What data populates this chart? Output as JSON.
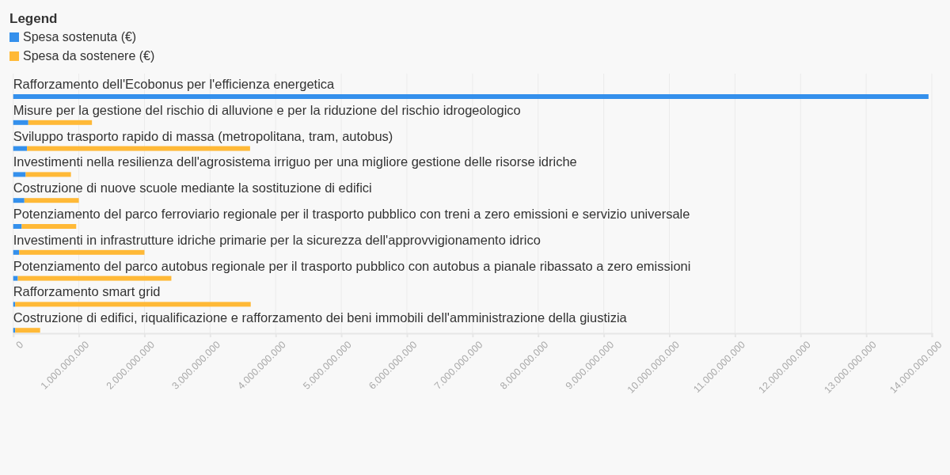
{
  "chart_data": {
    "type": "bar",
    "orientation": "horizontal",
    "stacked": true,
    "legend_title": "Legend",
    "legend": "top left",
    "grid": "x",
    "categories": [
      "Rafforzamento dell'Ecobonus per l'efficienza energetica",
      "Misure per la gestione del rischio di alluvione e per la riduzione del rischio idrogeologico",
      "Sviluppo trasporto rapido di massa (metropolitana, tram, autobus)",
      "Investimenti nella resilienza dell'agrosistema irriguo per una migliore gestione delle risorse idriche",
      "Costruzione di nuove scuole mediante la sostituzione di edifici",
      "Potenziamento del parco ferroviario regionale per il trasporto pubblico con treni a zero emissioni e servizio universale",
      "Investimenti in infrastrutture idriche primarie per la sicurezza dell'approvvigionamento idrico",
      "Potenziamento del parco autobus regionale per il trasporto pubblico con autobus a pianale ribassato a zero emissioni",
      "Rafforzamento smart grid",
      "Costruzione di edifici, riqualificazione e rafforzamento dei beni immobili dell'amministrazione della giustizia"
    ],
    "series": [
      {
        "name": "Spesa sostenuta (€)",
        "color": "#3490ec",
        "values": [
          13950000000,
          230000000,
          210000000,
          190000000,
          170000000,
          130000000,
          90000000,
          70000000,
          30000000,
          30000000
        ]
      },
      {
        "name": "Spesa da sostenere (€)",
        "color": "#ffb937",
        "values": [
          0,
          970000000,
          3400000000,
          690000000,
          830000000,
          830000000,
          1910000000,
          2340000000,
          3590000000,
          380000000
        ]
      }
    ],
    "xlim": [
      0,
      14000000000
    ],
    "xticks": [
      0,
      {
        "value": 1000000000,
        "label": "1.000.000.000"
      },
      {
        "value": 2000000000,
        "label": "2.000.000.000"
      },
      {
        "value": 3000000000,
        "label": "3.000.000.000"
      },
      {
        "value": 4000000000,
        "label": "4.000.000.000"
      },
      {
        "value": 5000000000,
        "label": "5.000.000.000"
      },
      {
        "value": 6000000000,
        "label": "6.000.000.000"
      },
      {
        "value": 7000000000,
        "label": "7.000.000.000"
      },
      {
        "value": 8000000000,
        "label": "8.000.000.000"
      },
      {
        "value": 9000000000,
        "label": "9.000.000.000"
      },
      {
        "value": 10000000000,
        "label": "10.000.000.000"
      },
      {
        "value": 11000000000,
        "label": "11.000.000.000"
      },
      {
        "value": 12000000000,
        "label": "12.000.000.000"
      },
      {
        "value": 13000000000,
        "label": "13.000.000.000"
      },
      {
        "value": 14000000000,
        "label": "14.000.000.000"
      }
    ]
  }
}
